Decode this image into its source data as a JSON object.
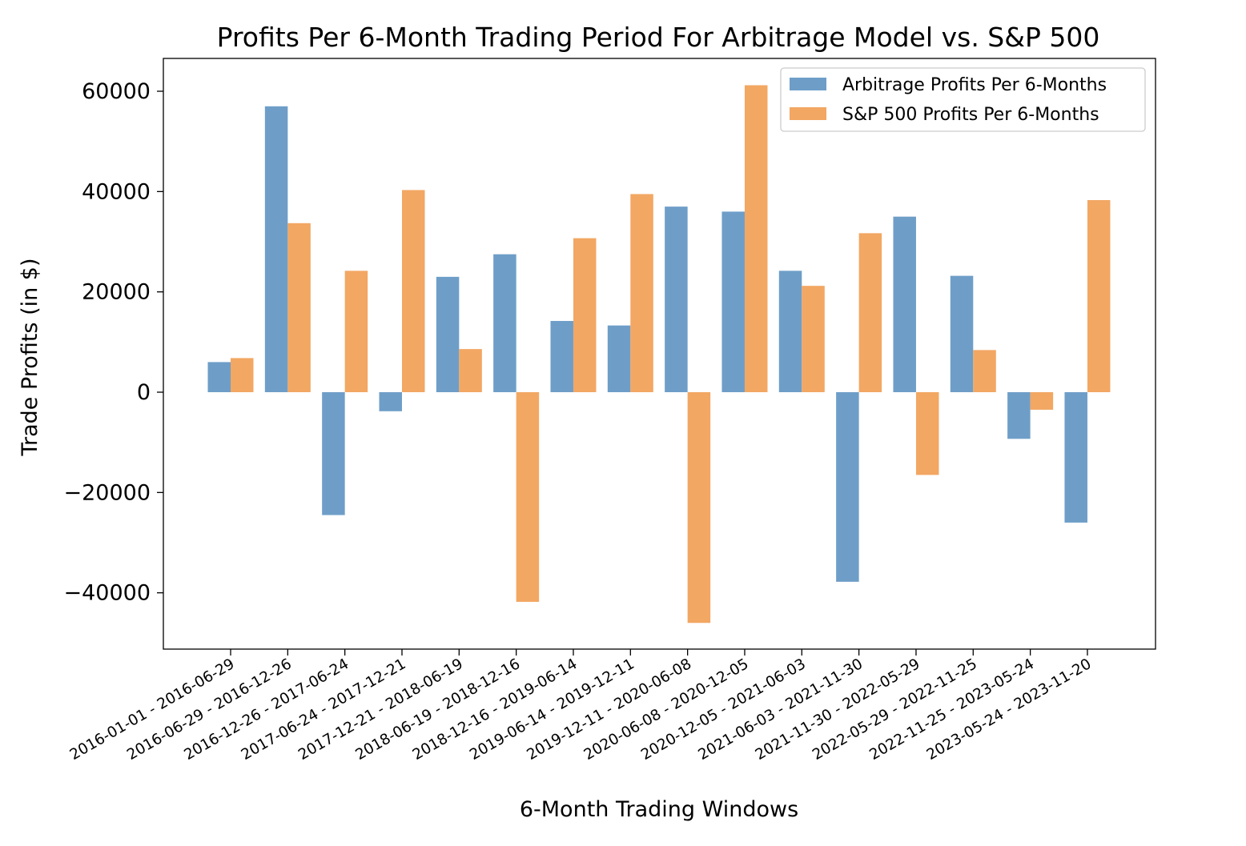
{
  "chart_data": {
    "type": "bar",
    "title": "Profits Per 6-Month Trading Period For Arbitrage Model vs. S&P 500",
    "xlabel": "6-Month Trading Windows",
    "ylabel": "Trade Profits (in $)",
    "ylim": [
      -51000,
      66000
    ],
    "yticks": [
      60000,
      40000,
      20000,
      0,
      -20000,
      -40000
    ],
    "ytick_labels": [
      "60000",
      "40000",
      "20000",
      "0",
      "−20000",
      "−40000"
    ],
    "grid": false,
    "legend_position": "top-right",
    "categories": [
      "2016-01-01 - 2016-06-29",
      "2016-06-29 - 2016-12-26",
      "2016-12-26 - 2017-06-24",
      "2017-06-24 - 2017-12-21",
      "2017-12-21 - 2018-06-19",
      "2018-06-19 - 2018-12-16",
      "2018-12-16 - 2019-06-14",
      "2019-06-14 - 2019-12-11",
      "2019-12-11 - 2020-06-08",
      "2020-06-08 - 2020-12-05",
      "2020-12-05 - 2021-06-03",
      "2021-06-03 - 2021-11-30",
      "2021-11-30 - 2022-05-29",
      "2022-05-29 - 2022-11-25",
      "2022-11-25 - 2023-05-24",
      "2023-05-24 - 2023-11-20"
    ],
    "series": [
      {
        "name": "Arbitrage Profits Per 6-Months",
        "color": "#6e9ec8",
        "values": [
          6000,
          57000,
          -24500,
          -3800,
          23000,
          27500,
          14200,
          13300,
          37000,
          36000,
          24200,
          -37800,
          35000,
          23200,
          -9300,
          -26000
        ]
      },
      {
        "name": "S&P 500 Profits Per 6-Months",
        "color": "#f2a763",
        "values": [
          6800,
          33700,
          24200,
          40300,
          8600,
          -41800,
          30700,
          39500,
          -46000,
          61200,
          21200,
          31700,
          -16500,
          8400,
          -3500,
          38300
        ]
      }
    ]
  }
}
